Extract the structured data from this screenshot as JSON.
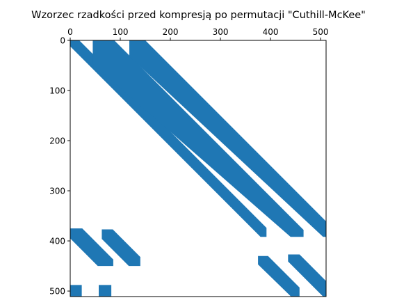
{
  "chart_data": {
    "type": "spy",
    "title": "Wzorzec rzadkości przed kompresją po permutacji \"Cuthill-McKee\"",
    "xlabel": "",
    "ylabel": "",
    "xlim": [
      0,
      511
    ],
    "ylim": [
      511,
      0
    ],
    "x_ticks": [
      0,
      100,
      200,
      300,
      400,
      500
    ],
    "y_ticks": [
      0,
      100,
      200,
      300,
      400,
      500
    ],
    "x_axis_position": "top",
    "y_axis_inverted": true,
    "grid": false,
    "marker_color": "#1f77b4",
    "nonzero_regions": [
      {
        "name": "main-diagonal-band",
        "polygon": [
          [
            0,
            0
          ],
          [
            18,
            0
          ],
          [
            392,
            374
          ],
          [
            392,
            392
          ],
          [
            380,
            392
          ],
          [
            0,
            12
          ]
        ]
      },
      {
        "name": "upper-band-1",
        "polygon": [
          [
            45,
            0
          ],
          [
            88,
            0
          ],
          [
            466,
            378
          ],
          [
            466,
            392
          ],
          [
            440,
            392
          ],
          [
            45,
            47
          ]
        ]
      },
      {
        "name": "upper-band-2",
        "polygon": [
          [
            118,
            0
          ],
          [
            150,
            0
          ],
          [
            511,
            361
          ],
          [
            511,
            392
          ],
          [
            505,
            392
          ],
          [
            118,
            32
          ]
        ]
      },
      {
        "name": "lower-block-1",
        "polygon": [
          [
            0,
            375
          ],
          [
            24,
            375
          ],
          [
            86,
            437
          ],
          [
            86,
            450
          ],
          [
            55,
            450
          ],
          [
            0,
            395
          ]
        ]
      },
      {
        "name": "lower-block-2",
        "polygon": [
          [
            63,
            377
          ],
          [
            85,
            377
          ],
          [
            140,
            432
          ],
          [
            140,
            450
          ],
          [
            117,
            450
          ],
          [
            63,
            396
          ]
        ]
      },
      {
        "name": "lower-block-3",
        "polygon": [
          [
            0,
            488
          ],
          [
            23,
            488
          ],
          [
            23,
            511
          ],
          [
            0,
            511
          ]
        ]
      },
      {
        "name": "lower-block-4",
        "polygon": [
          [
            57,
            488
          ],
          [
            82,
            488
          ],
          [
            82,
            511
          ],
          [
            57,
            511
          ]
        ]
      },
      {
        "name": "lower-right-block-1",
        "polygon": [
          [
            375,
            430
          ],
          [
            395,
            430
          ],
          [
            458,
            493
          ],
          [
            458,
            511
          ],
          [
            441,
            511
          ],
          [
            375,
            447
          ]
        ]
      },
      {
        "name": "lower-right-block-2",
        "polygon": [
          [
            435,
            427
          ],
          [
            458,
            427
          ],
          [
            511,
            480
          ],
          [
            511,
            511
          ],
          [
            505,
            511
          ],
          [
            435,
            441
          ]
        ]
      }
    ]
  }
}
